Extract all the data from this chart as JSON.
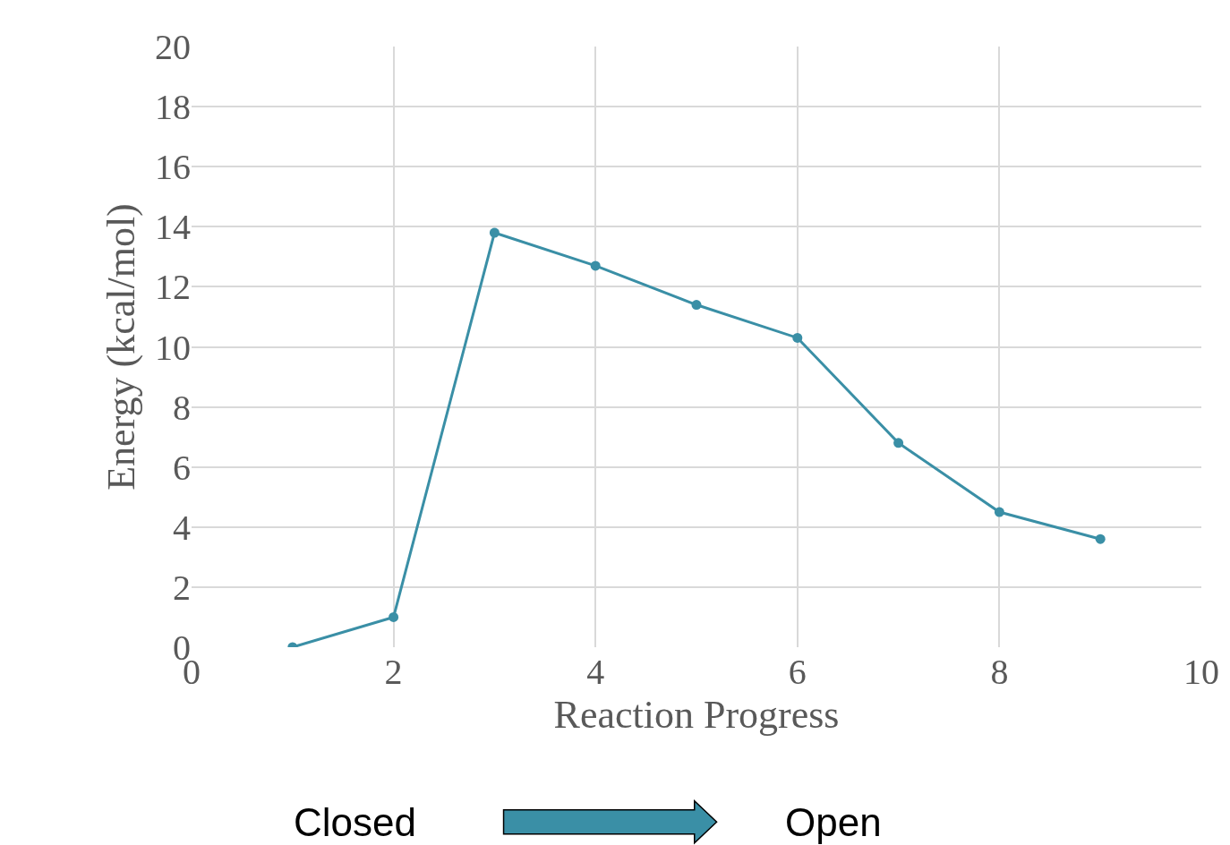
{
  "chart_data": {
    "type": "line",
    "xlabel": "Reaction Progress",
    "ylabel": "Energy (kcal/mol)",
    "x": [
      1,
      2,
      3,
      4,
      5,
      6,
      7,
      8,
      9
    ],
    "series": [
      {
        "color": "#3a8fa6",
        "values": [
          0,
          1.0,
          13.8,
          12.7,
          11.4,
          10.3,
          6.8,
          4.5,
          3.6
        ]
      }
    ],
    "xlim": [
      0,
      10
    ],
    "xticks": [
      0,
      2,
      4,
      6,
      8,
      10
    ],
    "ylim": [
      0,
      20
    ],
    "yticks": [
      0,
      2,
      4,
      6,
      8,
      10,
      12,
      14,
      16,
      18,
      20
    ],
    "grid": true,
    "marker": "circle",
    "line_style": "solid",
    "legend": false,
    "annotations": [
      "Closed",
      "Open"
    ]
  }
}
